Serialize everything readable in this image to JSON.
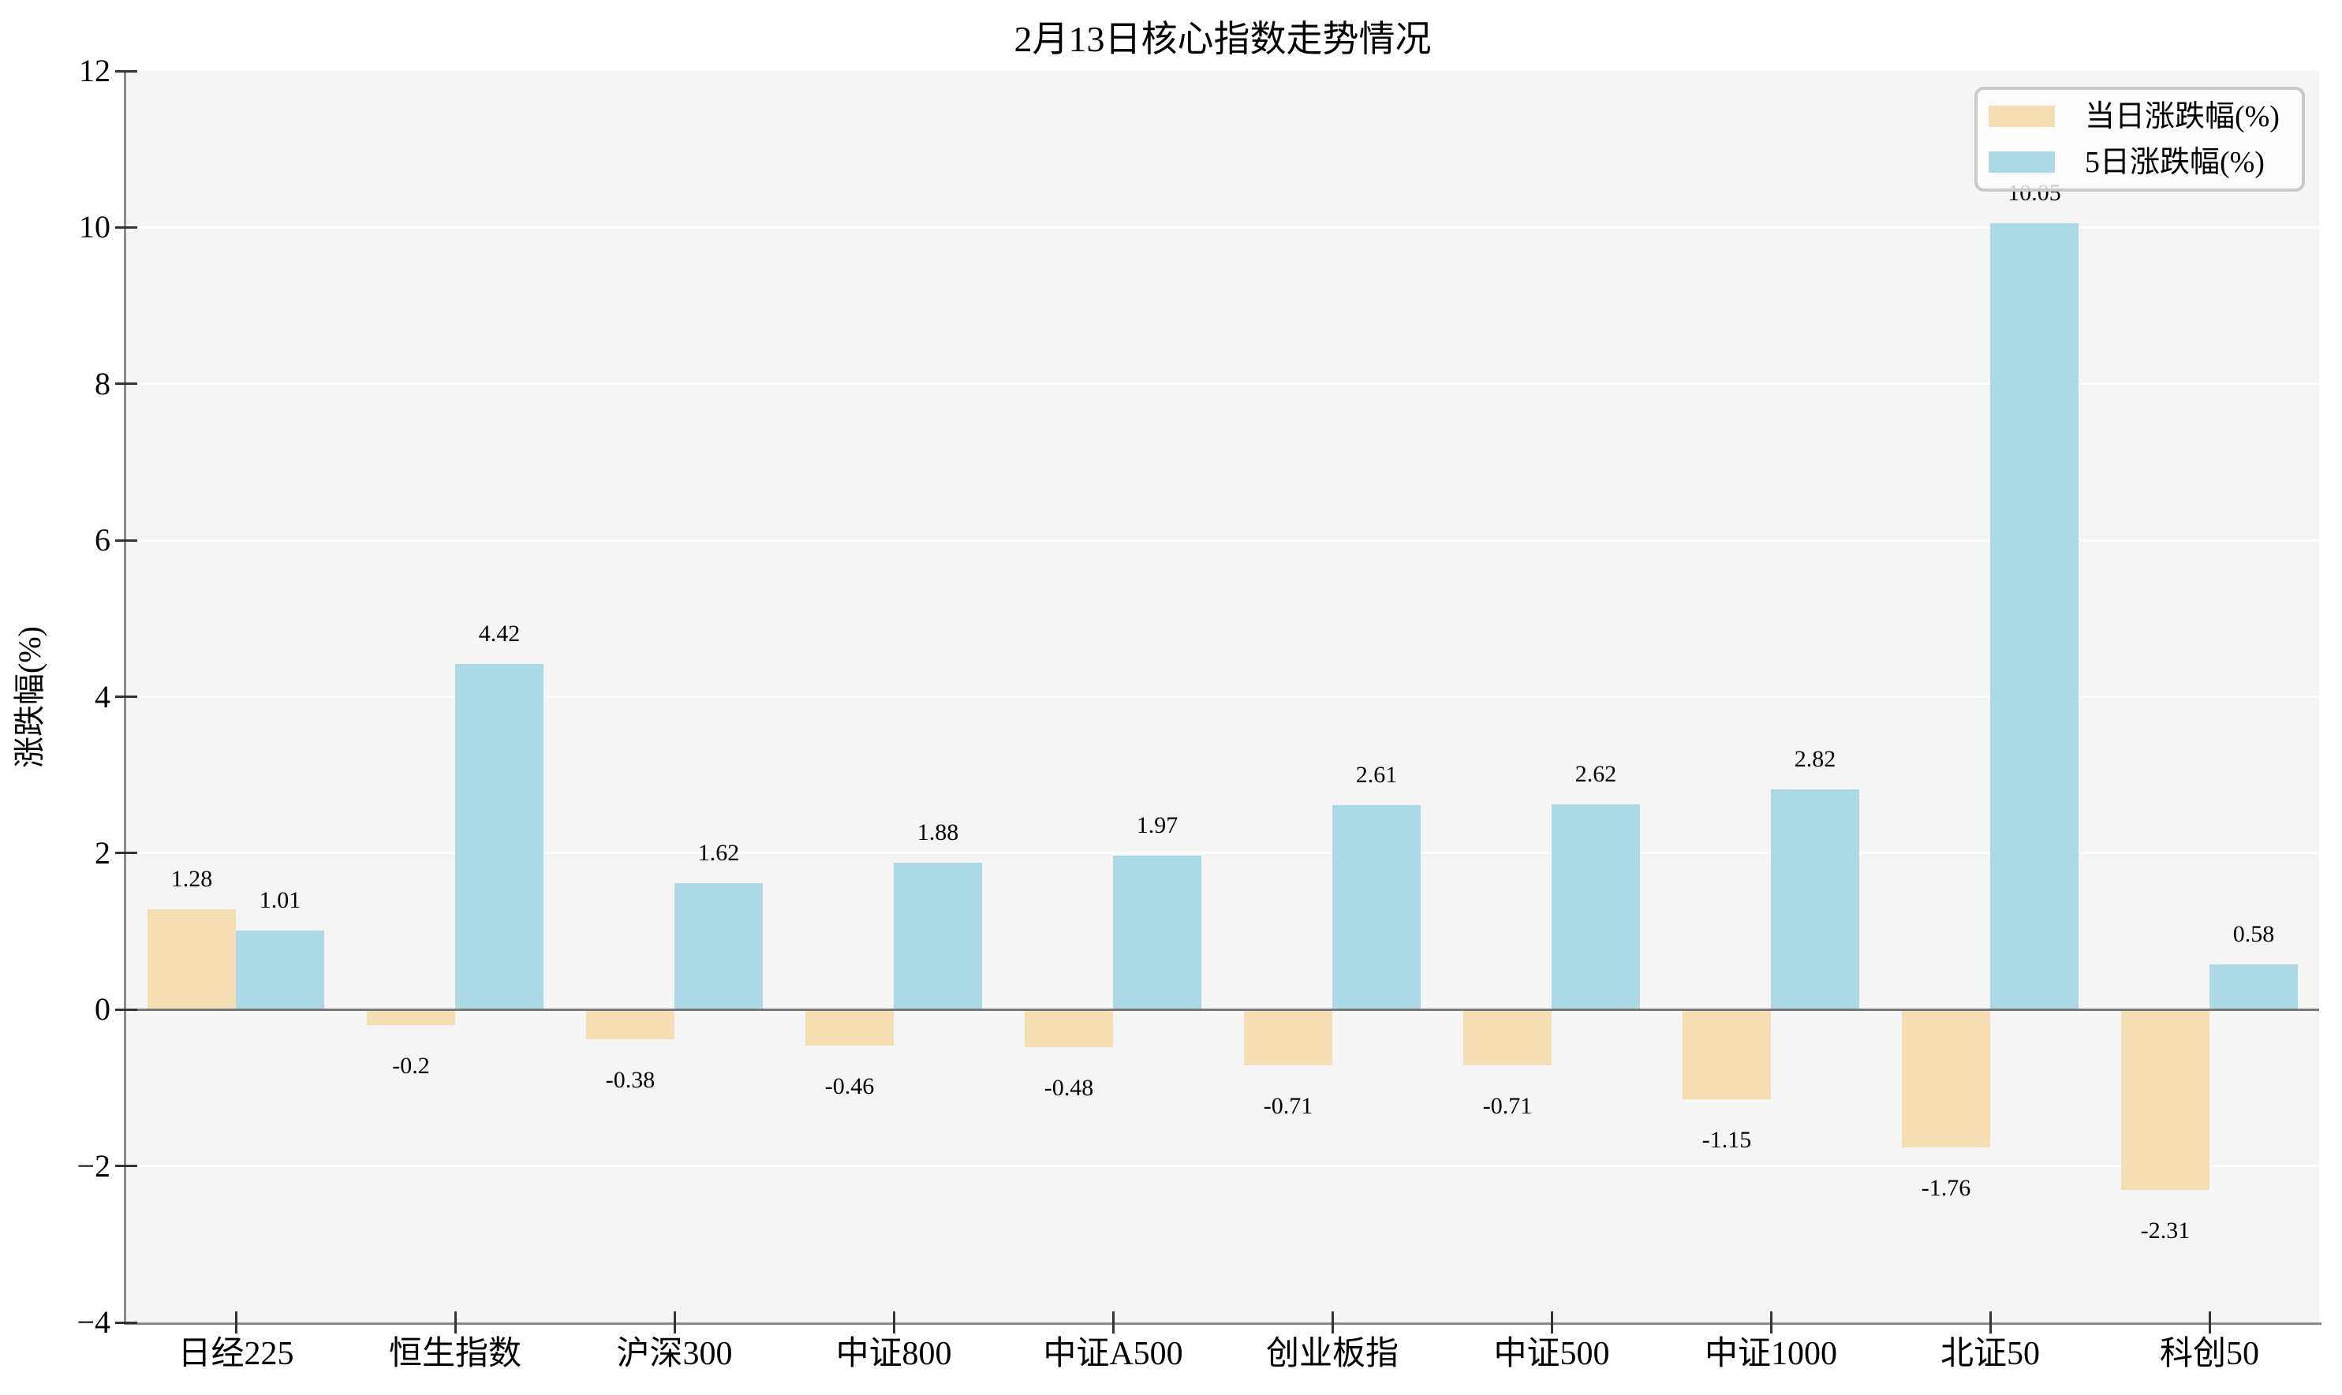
{
  "chart_data": {
    "type": "bar",
    "title": "2月13日核心指数走势情况",
    "ylabel": "涨跌幅(%)",
    "categories": [
      "日经225",
      "恒生指数",
      "沪深300",
      "中证800",
      "中证A500",
      "创业板指",
      "中证500",
      "中证1000",
      "北证50",
      "科创50"
    ],
    "series": [
      {
        "name": "当日涨跌幅(%)",
        "color": "#F5DEB3",
        "values": [
          1.28,
          -0.2,
          -0.38,
          -0.46,
          -0.48,
          -0.71,
          -0.71,
          -1.15,
          -1.76,
          -2.31
        ]
      },
      {
        "name": "5日涨跌幅(%)",
        "color": "#ADD8E6",
        "values": [
          1.01,
          4.42,
          1.62,
          1.88,
          1.97,
          2.61,
          2.62,
          2.82,
          10.05,
          0.58
        ]
      }
    ],
    "ylim": [
      -4,
      12
    ],
    "yticks": [
      12,
      10,
      8,
      6,
      4,
      2,
      0,
      -2,
      -4
    ],
    "grid": true,
    "legend_position": "upper right",
    "colors": {
      "plot_background": "#f5f5f5",
      "gridline": "#ffffff",
      "axis_spine": "#8a8a8a",
      "zero_line": "#787878",
      "tick": "#333333",
      "text": "#000000"
    }
  }
}
